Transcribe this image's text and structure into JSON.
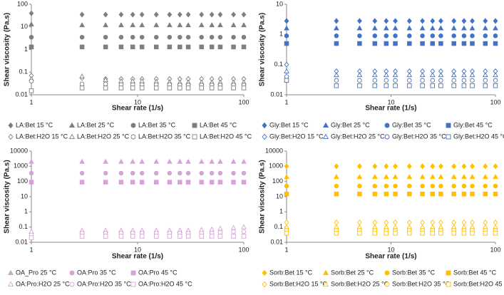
{
  "chart_data": [
    {
      "type": "scatter",
      "xlabel": "Shear rate (1/s)",
      "ylabel": "Shear viscosity (Pa.s)",
      "xscale": "log",
      "yscale": "log",
      "xlim": [
        1,
        100
      ],
      "xticks": [
        1,
        10,
        100
      ],
      "ylim": [
        0.01,
        100
      ],
      "yticks": [
        0.01,
        0.1,
        1,
        10,
        100
      ],
      "x": [
        1,
        3,
        5,
        7,
        9,
        11,
        15,
        20,
        25,
        30,
        40,
        50,
        60,
        80,
        100
      ],
      "series": [
        {
          "name": "LA:Bet 15 °C",
          "color": "#7f7f7f",
          "marker": "diamond",
          "filled": true,
          "values": [
            40,
            35,
            35,
            35,
            35,
            35,
            35,
            35,
            35,
            35,
            35,
            35,
            35,
            35,
            35
          ]
        },
        {
          "name": "LA:Bet 25 °C",
          "color": "#7f7f7f",
          "marker": "triangle",
          "filled": true,
          "values": [
            13,
            12,
            12,
            12,
            12,
            12,
            12,
            12,
            12,
            12,
            12,
            12,
            12,
            12,
            12
          ]
        },
        {
          "name": "LA:Bet 35 °C",
          "color": "#7f7f7f",
          "marker": "circle",
          "filled": true,
          "values": [
            3.5,
            3.5,
            3.5,
            3.5,
            3.5,
            3.5,
            3.5,
            3.5,
            3.5,
            3.5,
            3.5,
            3.5,
            3.5,
            3.5,
            3.5
          ]
        },
        {
          "name": "LA:Bet 45 °C",
          "color": "#7f7f7f",
          "marker": "square",
          "filled": true,
          "values": [
            1.3,
            1.3,
            1.3,
            1.3,
            1.3,
            1.3,
            1.3,
            1.3,
            1.3,
            1.3,
            1.3,
            1.3,
            1.3,
            1.3,
            1.3
          ]
        },
        {
          "name": "LA:Bet:H2O 15 °C",
          "color": "#7f7f7f",
          "marker": "diamond",
          "filled": false,
          "values": [
            0.07,
            0.055,
            0.05,
            0.05,
            0.05,
            0.05,
            0.05,
            0.05,
            0.05,
            0.05,
            0.05,
            0.05,
            0.05,
            0.05,
            0.05
          ]
        },
        {
          "name": "LA:Bet:H2O 25 °C",
          "color": "#7f7f7f",
          "marker": "triangle",
          "filled": false,
          "values": [
            0.05,
            0.065,
            0.045,
            0.04,
            0.04,
            0.04,
            0.038,
            0.036,
            0.035,
            0.035,
            0.035,
            0.035,
            0.035,
            0.035,
            0.035
          ]
        },
        {
          "name": "LA:Bet:H2O 35 °C",
          "color": "#7f7f7f",
          "marker": "circle",
          "filled": false,
          "values": [
            0.04,
            0.03,
            0.03,
            0.028,
            0.028,
            0.028,
            0.028,
            0.028,
            0.027,
            0.027,
            0.027,
            0.027,
            0.027,
            0.027,
            0.027
          ]
        },
        {
          "name": "LA:Bet:H2O 45 °C",
          "color": "#7f7f7f",
          "marker": "square",
          "filled": false,
          "values": [
            0.015,
            0.02,
            0.02,
            0.02,
            0.02,
            0.02,
            0.02,
            0.02,
            0.02,
            0.02,
            0.02,
            0.02,
            0.02,
            0.02,
            0.02
          ]
        }
      ]
    },
    {
      "type": "scatter",
      "xlabel": "Shear rate (1/s)",
      "ylabel": "Shear viscosity (Pa.s)",
      "xscale": "log",
      "yscale": "log",
      "xlim": [
        1,
        100
      ],
      "xticks": [
        1,
        10,
        100
      ],
      "ylim": [
        0.01,
        10
      ],
      "yticks": [
        0.01,
        0.1,
        1,
        10
      ],
      "x": [
        1,
        3,
        5,
        7,
        9,
        11,
        15,
        20,
        25,
        30,
        40,
        50,
        60,
        80,
        100
      ],
      "series": [
        {
          "name": "Gly:Bet 15 °C",
          "color": "#4472c4",
          "marker": "diamond",
          "filled": true,
          "values": [
            2.8,
            2.8,
            2.8,
            2.8,
            2.8,
            2.8,
            2.8,
            2.8,
            2.8,
            2.8,
            2.8,
            2.8,
            2.8,
            2.8,
            2.8
          ]
        },
        {
          "name": "Gly:Bet 25 °C",
          "color": "#4472c4",
          "marker": "triangle",
          "filled": true,
          "values": [
            1.6,
            1.6,
            1.6,
            1.6,
            1.6,
            1.6,
            1.6,
            1.6,
            1.6,
            1.6,
            1.6,
            1.6,
            1.6,
            1.6,
            1.6
          ]
        },
        {
          "name": "Gly:Bet 35 °C",
          "color": "#4472c4",
          "marker": "circle",
          "filled": true,
          "values": [
            0.9,
            0.9,
            0.9,
            0.9,
            0.9,
            0.9,
            0.9,
            0.9,
            0.9,
            0.9,
            0.9,
            0.9,
            0.9,
            0.9,
            0.9
          ]
        },
        {
          "name": "Gly:Bet 45 °C",
          "color": "#4472c4",
          "marker": "square",
          "filled": true,
          "values": [
            0.5,
            0.5,
            0.5,
            0.5,
            0.5,
            0.5,
            0.5,
            0.5,
            0.5,
            0.5,
            0.5,
            0.5,
            0.5,
            0.5,
            0.5
          ]
        },
        {
          "name": "Gly:Bet:H2O 15 °C",
          "color": "#4472c4",
          "marker": "diamond",
          "filled": false,
          "values": [
            0.1,
            0.06,
            0.06,
            0.06,
            0.06,
            0.06,
            0.06,
            0.06,
            0.06,
            0.06,
            0.06,
            0.06,
            0.06,
            0.06,
            0.06
          ]
        },
        {
          "name": "Gly:Bet:H2O 25 °C",
          "color": "#4472c4",
          "marker": "triangle",
          "filled": false,
          "values": [
            0.06,
            0.045,
            0.045,
            0.045,
            0.045,
            0.045,
            0.045,
            0.045,
            0.045,
            0.045,
            0.045,
            0.045,
            0.045,
            0.045,
            0.045
          ]
        },
        {
          "name": "Gly:Bet:H2O 35 °C",
          "color": "#4472c4",
          "marker": "circle",
          "filled": false,
          "values": [
            0.04,
            0.03,
            0.03,
            0.03,
            0.03,
            0.03,
            0.03,
            0.03,
            0.03,
            0.03,
            0.03,
            0.03,
            0.03,
            0.03,
            0.03
          ]
        },
        {
          "name": "Gly:Bet:H2O 45 °C",
          "color": "#4472c4",
          "marker": "square",
          "filled": false,
          "values": [
            0.03,
            0.02,
            0.02,
            0.02,
            0.02,
            0.02,
            0.02,
            0.02,
            0.02,
            0.02,
            0.02,
            0.02,
            0.02,
            0.02,
            0.02
          ]
        }
      ]
    },
    {
      "type": "scatter",
      "xlabel": "Shear rate (1/s)",
      "ylabel": "Shear viscosity (Pa.s)",
      "xscale": "log",
      "yscale": "log",
      "xlim": [
        1,
        100
      ],
      "xticks": [
        1,
        10,
        100
      ],
      "ylim": [
        0.01,
        10000
      ],
      "yticks": [
        0.01,
        0.1,
        1,
        10,
        100,
        1000,
        10000
      ],
      "x": [
        1,
        3,
        5,
        7,
        9,
        11,
        15,
        20,
        25,
        30,
        40,
        50,
        60,
        80,
        100
      ],
      "series": [
        {
          "name": "OA_Pro 25 °C",
          "color": "#d4a5d4",
          "marker": "triangle",
          "filled": true,
          "values": [
            2000,
            2000,
            2000,
            2000,
            2000,
            2000,
            2000,
            2000,
            2000,
            2000,
            2000,
            2000,
            2000,
            2000,
            2000
          ]
        },
        {
          "name": "OA:Pro 35 °C",
          "color": "#d4a5d4",
          "marker": "circle",
          "filled": true,
          "values": [
            350,
            350,
            350,
            350,
            350,
            350,
            350,
            350,
            350,
            350,
            350,
            350,
            350,
            350,
            350
          ]
        },
        {
          "name": "OA:Pro 45 °C",
          "color": "#d4a5d4",
          "marker": "square",
          "filled": true,
          "values": [
            90,
            90,
            90,
            90,
            90,
            90,
            90,
            90,
            90,
            90,
            90,
            90,
            90,
            90,
            90
          ]
        },
        {
          "name": "OA:Pro:H2O 25 °C",
          "color": "#d4a5d4",
          "marker": "triangle",
          "filled": false,
          "values": [
            0.05,
            0.06,
            0.06,
            0.06,
            0.06,
            0.06,
            0.06,
            0.06,
            0.06,
            0.06,
            0.065,
            0.07,
            0.08,
            0.09,
            0.1
          ]
        },
        {
          "name": "OA:Pro:H2O 35 °C",
          "color": "#d4a5d4",
          "marker": "circle",
          "filled": false,
          "values": [
            0.03,
            0.04,
            0.04,
            0.04,
            0.04,
            0.04,
            0.04,
            0.04,
            0.04,
            0.04,
            0.04,
            0.04,
            0.045,
            0.05,
            0.05
          ]
        },
        {
          "name": "OA:Pro:H2O 45 °C",
          "color": "#d4a5d4",
          "marker": "square",
          "filled": false,
          "values": [
            0.02,
            0.025,
            0.025,
            0.025,
            0.025,
            0.025,
            0.025,
            0.025,
            0.025,
            0.025,
            0.025,
            0.025,
            0.025,
            0.025,
            0.025
          ]
        }
      ]
    },
    {
      "type": "scatter",
      "xlabel": "Shear rate (1/s)",
      "ylabel": "Shear viscosity (Pa.s)",
      "xscale": "log",
      "yscale": "log",
      "xlim": [
        1,
        100
      ],
      "xticks": [
        1,
        10,
        100
      ],
      "ylim": [
        0.01,
        10000
      ],
      "yticks": [
        0.01,
        0.1,
        1,
        10,
        100,
        1000,
        10000
      ],
      "x": [
        1,
        3,
        5,
        7,
        9,
        11,
        15,
        20,
        25,
        30,
        40,
        50,
        60,
        80,
        100
      ],
      "series": [
        {
          "name": "Sorb:Bet 15 °C",
          "color": "#ffc000",
          "marker": "diamond",
          "filled": true,
          "values": [
            1000,
            1000,
            1000,
            1000,
            1000,
            1000,
            1000,
            1000,
            1000,
            1000,
            1000,
            1000,
            1000,
            1000,
            1000
          ]
        },
        {
          "name": "Sorb:Bet 25 °C",
          "color": "#ffc000",
          "marker": "triangle",
          "filled": true,
          "values": [
            200,
            200,
            200,
            200,
            200,
            200,
            200,
            200,
            200,
            200,
            200,
            200,
            200,
            200,
            200
          ]
        },
        {
          "name": "Sorb:Bet 35 °C",
          "color": "#ffc000",
          "marker": "circle",
          "filled": true,
          "values": [
            50,
            50,
            50,
            50,
            50,
            50,
            50,
            50,
            50,
            50,
            50,
            50,
            50,
            50,
            50
          ]
        },
        {
          "name": "Sorb:Bet 45 °C",
          "color": "#ffc000",
          "marker": "square",
          "filled": true,
          "values": [
            15,
            15,
            15,
            15,
            15,
            15,
            15,
            15,
            15,
            15,
            15,
            15,
            15,
            15,
            15
          ]
        },
        {
          "name": "Sorb:Bet:H2O 15 °C",
          "color": "#ffc000",
          "marker": "diamond",
          "filled": false,
          "values": [
            0.2,
            0.2,
            0.2,
            0.2,
            0.2,
            0.2,
            0.2,
            0.2,
            0.2,
            0.2,
            0.2,
            0.2,
            0.2,
            0.2,
            0.2
          ]
        },
        {
          "name": "Sorb:Bet:H2O 25 °C",
          "color": "#ffc000",
          "marker": "triangle",
          "filled": false,
          "values": [
            0.1,
            0.1,
            0.1,
            0.1,
            0.1,
            0.1,
            0.1,
            0.1,
            0.1,
            0.1,
            0.1,
            0.1,
            0.1,
            0.1,
            0.1
          ]
        },
        {
          "name": "Sorb:Bet:H2O 35 °C",
          "color": "#ffc000",
          "marker": "circle",
          "filled": false,
          "values": [
            0.06,
            0.06,
            0.06,
            0.06,
            0.06,
            0.06,
            0.06,
            0.06,
            0.06,
            0.06,
            0.06,
            0.06,
            0.06,
            0.06,
            0.06
          ]
        },
        {
          "name": "Sorb:Bet:H2O 45 °C",
          "color": "#ffc000",
          "marker": "square",
          "filled": false,
          "values": [
            0.04,
            0.04,
            0.04,
            0.04,
            0.04,
            0.04,
            0.04,
            0.04,
            0.04,
            0.04,
            0.04,
            0.04,
            0.04,
            0.04,
            0.04
          ]
        }
      ]
    }
  ]
}
